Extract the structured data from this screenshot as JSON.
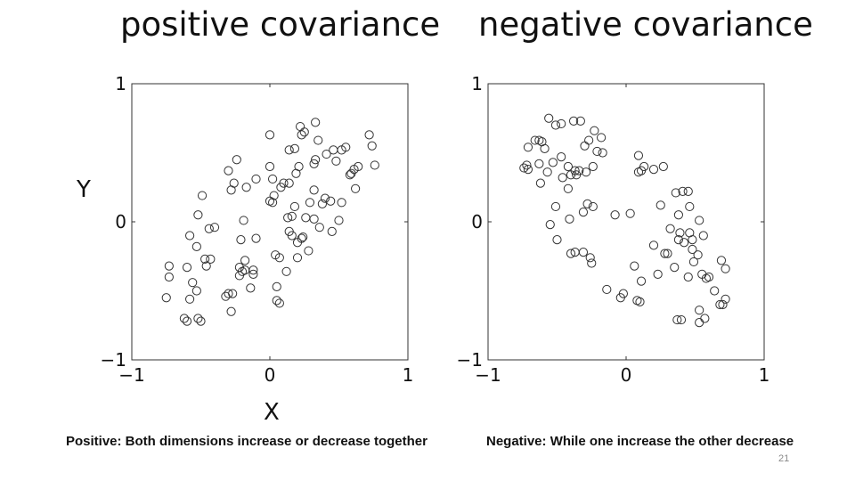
{
  "slide": {
    "page_number": "21"
  },
  "titles": {
    "left": "positive covariance",
    "right": "negative covariance"
  },
  "axis_letters": {
    "y": "Y",
    "x": "X"
  },
  "captions": {
    "left": "Positive: Both dimensions increase or decrease together",
    "right": "Negative: While one increase the other decrease"
  },
  "chart_data": [
    {
      "type": "scatter",
      "title": "positive covariance",
      "xlabel": "X",
      "ylabel": "Y",
      "xlim": [
        -1,
        1
      ],
      "ylim": [
        -1,
        1
      ],
      "xticks": [
        "−1",
        "0",
        "1"
      ],
      "yticks": [
        "−1",
        "0",
        "1"
      ],
      "grid": false,
      "marker": "hollow-circle",
      "points": [
        [
          -0.75,
          -0.55
        ],
        [
          -0.73,
          -0.32
        ],
        [
          -0.73,
          -0.4
        ],
        [
          -0.62,
          -0.7
        ],
        [
          -0.6,
          -0.72
        ],
        [
          -0.6,
          -0.33
        ],
        [
          -0.58,
          -0.56
        ],
        [
          -0.58,
          -0.1
        ],
        [
          -0.56,
          -0.44
        ],
        [
          -0.53,
          -0.5
        ],
        [
          -0.53,
          -0.18
        ],
        [
          -0.52,
          0.05
        ],
        [
          -0.52,
          -0.7
        ],
        [
          -0.5,
          -0.72
        ],
        [
          -0.49,
          0.19
        ],
        [
          -0.47,
          -0.27
        ],
        [
          -0.46,
          -0.32
        ],
        [
          -0.44,
          -0.05
        ],
        [
          -0.43,
          -0.27
        ],
        [
          -0.4,
          -0.04
        ],
        [
          -0.32,
          -0.54
        ],
        [
          -0.3,
          -0.52
        ],
        [
          -0.3,
          0.37
        ],
        [
          -0.28,
          -0.65
        ],
        [
          -0.28,
          0.23
        ],
        [
          -0.27,
          -0.52
        ],
        [
          -0.26,
          0.28
        ],
        [
          -0.24,
          0.45
        ],
        [
          -0.22,
          -0.33
        ],
        [
          -0.22,
          -0.39
        ],
        [
          -0.21,
          -0.13
        ],
        [
          -0.2,
          -0.36
        ],
        [
          -0.19,
          0.01
        ],
        [
          -0.18,
          -0.35
        ],
        [
          -0.18,
          -0.28
        ],
        [
          -0.17,
          0.25
        ],
        [
          -0.14,
          -0.48
        ],
        [
          -0.12,
          -0.35
        ],
        [
          -0.12,
          -0.38
        ],
        [
          -0.1,
          -0.12
        ],
        [
          -0.1,
          0.31
        ],
        [
          0.0,
          0.15
        ],
        [
          0.0,
          0.4
        ],
        [
          0.0,
          0.63
        ],
        [
          0.02,
          0.31
        ],
        [
          0.02,
          0.14
        ],
        [
          0.03,
          0.19
        ],
        [
          0.04,
          -0.24
        ],
        [
          0.05,
          -0.47
        ],
        [
          0.05,
          -0.57
        ],
        [
          0.07,
          -0.26
        ],
        [
          0.07,
          -0.59
        ],
        [
          0.08,
          0.25
        ],
        [
          0.1,
          0.28
        ],
        [
          0.12,
          -0.36
        ],
        [
          0.13,
          0.03
        ],
        [
          0.14,
          0.52
        ],
        [
          0.14,
          0.28
        ],
        [
          0.14,
          -0.07
        ],
        [
          0.16,
          0.04
        ],
        [
          0.16,
          -0.1
        ],
        [
          0.18,
          0.53
        ],
        [
          0.18,
          0.11
        ],
        [
          0.19,
          0.35
        ],
        [
          0.2,
          -0.15
        ],
        [
          0.2,
          -0.26
        ],
        [
          0.21,
          0.4
        ],
        [
          0.22,
          0.69
        ],
        [
          0.23,
          0.63
        ],
        [
          0.23,
          -0.12
        ],
        [
          0.24,
          -0.11
        ],
        [
          0.25,
          0.65
        ],
        [
          0.26,
          0.03
        ],
        [
          0.28,
          -0.21
        ],
        [
          0.29,
          0.14
        ],
        [
          0.32,
          0.42
        ],
        [
          0.32,
          0.23
        ],
        [
          0.32,
          0.02
        ],
        [
          0.33,
          0.45
        ],
        [
          0.33,
          0.72
        ],
        [
          0.35,
          0.59
        ],
        [
          0.36,
          -0.04
        ],
        [
          0.38,
          0.13
        ],
        [
          0.4,
          0.17
        ],
        [
          0.41,
          0.49
        ],
        [
          0.44,
          0.15
        ],
        [
          0.45,
          -0.07
        ],
        [
          0.46,
          0.52
        ],
        [
          0.48,
          0.44
        ],
        [
          0.5,
          0.01
        ],
        [
          0.52,
          0.14
        ],
        [
          0.52,
          0.52
        ],
        [
          0.55,
          0.54
        ],
        [
          0.58,
          0.34
        ],
        [
          0.59,
          0.35
        ],
        [
          0.61,
          0.38
        ],
        [
          0.62,
          0.24
        ],
        [
          0.64,
          0.4
        ],
        [
          0.72,
          0.63
        ],
        [
          0.74,
          0.55
        ],
        [
          0.76,
          0.41
        ]
      ]
    },
    {
      "type": "scatter",
      "title": "negative covariance",
      "xlim": [
        -1,
        1
      ],
      "ylim": [
        -1,
        1
      ],
      "xticks": [
        "−1",
        "0",
        "1"
      ],
      "yticks": [
        "−1",
        "0",
        "1"
      ],
      "grid": false,
      "marker": "hollow-circle",
      "points": [
        [
          -0.74,
          0.39
        ],
        [
          -0.72,
          0.41
        ],
        [
          -0.71,
          0.38
        ],
        [
          -0.71,
          0.54
        ],
        [
          -0.66,
          0.59
        ],
        [
          -0.63,
          0.59
        ],
        [
          -0.63,
          0.42
        ],
        [
          -0.62,
          0.28
        ],
        [
          -0.61,
          0.58
        ],
        [
          -0.59,
          0.53
        ],
        [
          -0.57,
          0.36
        ],
        [
          -0.56,
          0.75
        ],
        [
          -0.55,
          -0.02
        ],
        [
          -0.53,
          0.43
        ],
        [
          -0.51,
          0.11
        ],
        [
          -0.51,
          0.7
        ],
        [
          -0.5,
          -0.13
        ],
        [
          -0.47,
          0.71
        ],
        [
          -0.47,
          0.47
        ],
        [
          -0.46,
          0.32
        ],
        [
          -0.42,
          0.4
        ],
        [
          -0.42,
          0.24
        ],
        [
          -0.41,
          0.02
        ],
        [
          -0.4,
          0.34
        ],
        [
          -0.4,
          -0.23
        ],
        [
          -0.38,
          0.73
        ],
        [
          -0.37,
          -0.22
        ],
        [
          -0.37,
          0.37
        ],
        [
          -0.36,
          0.34
        ],
        [
          -0.34,
          0.37
        ],
        [
          -0.33,
          0.73
        ],
        [
          -0.31,
          0.07
        ],
        [
          -0.31,
          -0.22
        ],
        [
          -0.3,
          0.55
        ],
        [
          -0.29,
          0.36
        ],
        [
          -0.28,
          0.13
        ],
        [
          -0.27,
          0.59
        ],
        [
          -0.26,
          -0.26
        ],
        [
          -0.25,
          -0.3
        ],
        [
          -0.24,
          0.4
        ],
        [
          -0.24,
          0.11
        ],
        [
          -0.23,
          0.66
        ],
        [
          -0.21,
          0.51
        ],
        [
          -0.18,
          0.61
        ],
        [
          -0.17,
          0.5
        ],
        [
          -0.14,
          -0.49
        ],
        [
          -0.08,
          0.05
        ],
        [
          -0.04,
          -0.55
        ],
        [
          -0.02,
          -0.52
        ],
        [
          0.03,
          0.06
        ],
        [
          0.06,
          -0.32
        ],
        [
          0.08,
          -0.57
        ],
        [
          0.09,
          0.36
        ],
        [
          0.09,
          0.48
        ],
        [
          0.1,
          -0.58
        ],
        [
          0.11,
          -0.43
        ],
        [
          0.11,
          0.37
        ],
        [
          0.13,
          0.4
        ],
        [
          0.2,
          -0.17
        ],
        [
          0.2,
          0.38
        ],
        [
          0.23,
          -0.38
        ],
        [
          0.25,
          0.12
        ],
        [
          0.27,
          0.4
        ],
        [
          0.28,
          -0.23
        ],
        [
          0.3,
          -0.23
        ],
        [
          0.32,
          -0.05
        ],
        [
          0.35,
          -0.33
        ],
        [
          0.36,
          0.21
        ],
        [
          0.37,
          -0.71
        ],
        [
          0.38,
          -0.13
        ],
        [
          0.38,
          0.05
        ],
        [
          0.39,
          -0.08
        ],
        [
          0.4,
          -0.71
        ],
        [
          0.41,
          0.22
        ],
        [
          0.42,
          -0.15
        ],
        [
          0.45,
          -0.4
        ],
        [
          0.45,
          0.22
        ],
        [
          0.46,
          0.11
        ],
        [
          0.46,
          -0.08
        ],
        [
          0.48,
          -0.2
        ],
        [
          0.48,
          -0.13
        ],
        [
          0.49,
          -0.29
        ],
        [
          0.52,
          -0.24
        ],
        [
          0.53,
          0.01
        ],
        [
          0.53,
          -0.64
        ],
        [
          0.53,
          -0.73
        ],
        [
          0.55,
          -0.38
        ],
        [
          0.56,
          -0.1
        ],
        [
          0.57,
          -0.7
        ],
        [
          0.58,
          -0.41
        ],
        [
          0.6,
          -0.4
        ],
        [
          0.64,
          -0.5
        ],
        [
          0.68,
          -0.6
        ],
        [
          0.69,
          -0.28
        ],
        [
          0.7,
          -0.6
        ],
        [
          0.72,
          -0.34
        ],
        [
          0.72,
          -0.56
        ]
      ]
    }
  ]
}
